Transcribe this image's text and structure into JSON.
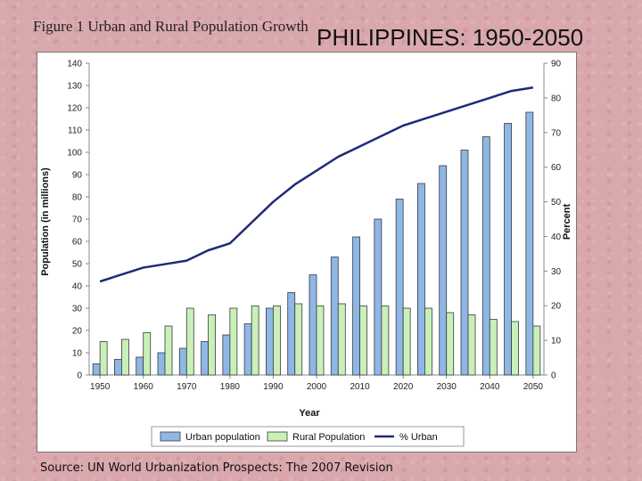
{
  "figure_title": "Figure 1 Urban and Rural Population Growth",
  "slide_title": "PHILIPPINES: 1950-2050",
  "source": "Source: UN World Urbanization Prospects: The 2007 Revision",
  "chart_data": {
    "type": "bar",
    "xlabel": "Year",
    "ylabel": "Population (in millions)",
    "y2label": "Percent",
    "ylim": [
      0,
      140
    ],
    "y_ticks": [
      0,
      10,
      20,
      30,
      40,
      50,
      60,
      70,
      80,
      90,
      100,
      110,
      120,
      130,
      140
    ],
    "y2lim": [
      0,
      90
    ],
    "y2_ticks": [
      0,
      10,
      20,
      30,
      40,
      50,
      60,
      70,
      80,
      90
    ],
    "x": [
      1950,
      1955,
      1960,
      1965,
      1970,
      1975,
      1980,
      1985,
      1990,
      1995,
      2000,
      2005,
      2010,
      2015,
      2020,
      2025,
      2030,
      2035,
      2040,
      2045,
      2050
    ],
    "x_tick_labels": [
      "1950",
      "1960",
      "1970",
      "1980",
      "1990",
      "2000",
      "2010",
      "2020",
      "2030",
      "2040",
      "2050"
    ],
    "series": [
      {
        "name": "Urban population",
        "kind": "bar",
        "color": "#8fb7e6",
        "values": [
          5,
          7,
          8,
          10,
          12,
          15,
          18,
          23,
          30,
          37,
          45,
          53,
          62,
          70,
          79,
          86,
          94,
          101,
          107,
          113,
          118
        ]
      },
      {
        "name": "Rural Population",
        "kind": "bar",
        "color": "#c9f0b8",
        "values": [
          15,
          16,
          19,
          22,
          30,
          27,
          30,
          31,
          31,
          32,
          31,
          32,
          31,
          31,
          30,
          30,
          28,
          27,
          25,
          24,
          22
        ]
      },
      {
        "name": "% Urban",
        "kind": "line",
        "axis": "right",
        "color": "#1f2a7a",
        "values": [
          27,
          29,
          31,
          32,
          33,
          36,
          38,
          44,
          50,
          55,
          59,
          63,
          66,
          69,
          72,
          74,
          76,
          78,
          80,
          82,
          83
        ]
      }
    ],
    "grid": false,
    "legend": "bottom"
  }
}
